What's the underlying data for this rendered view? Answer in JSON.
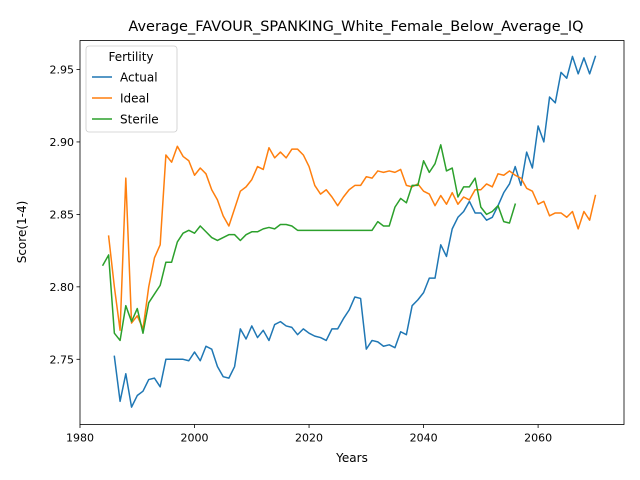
{
  "chart_data": {
    "type": "line",
    "title": "Average_FAVOUR_SPANKING_White_Female_Below_Average_IQ",
    "xlabel": "Years",
    "ylabel": "Score(1-4)",
    "xlim": [
      1980,
      2075
    ],
    "ylim": [
      2.705,
      2.97
    ],
    "xticks": [
      1980,
      2000,
      2020,
      2040,
      2060
    ],
    "yticks": [
      2.75,
      2.8,
      2.85,
      2.9,
      2.95
    ],
    "ytick_labels": [
      "2.75",
      "2.80",
      "2.85",
      "2.90",
      "2.95"
    ],
    "grid": false,
    "legend": {
      "title": "Fertility",
      "placement": "top-left"
    },
    "series": [
      {
        "name": "Actual",
        "color": "#1f77b4",
        "x": [
          1986,
          1987,
          1988,
          1989,
          1990,
          1991,
          1992,
          1993,
          1994,
          1995,
          1996,
          1997,
          1998,
          1999,
          2000,
          2001,
          2002,
          2003,
          2004,
          2005,
          2006,
          2007,
          2008,
          2009,
          2010,
          2011,
          2012,
          2013,
          2014,
          2015,
          2016,
          2017,
          2018,
          2019,
          2020,
          2021,
          2022,
          2023,
          2024,
          2025,
          2026,
          2027,
          2028,
          2029,
          2030,
          2031,
          2032,
          2033,
          2034,
          2035,
          2036,
          2037,
          2038,
          2039,
          2040,
          2041,
          2042,
          2043,
          2044,
          2045,
          2046,
          2047,
          2048,
          2049,
          2050,
          2051,
          2052,
          2053,
          2054,
          2055,
          2056,
          2057,
          2058,
          2059,
          2060,
          2061,
          2062,
          2063,
          2064,
          2065,
          2066,
          2067,
          2068,
          2069,
          2070
        ],
        "y": [
          2.752,
          2.721,
          2.74,
          2.717,
          2.725,
          2.728,
          2.736,
          2.737,
          2.731,
          2.75,
          2.75,
          2.75,
          2.75,
          2.749,
          2.755,
          2.749,
          2.759,
          2.757,
          2.745,
          2.738,
          2.737,
          2.745,
          2.771,
          2.764,
          2.773,
          2.765,
          2.77,
          2.763,
          2.774,
          2.776,
          2.773,
          2.772,
          2.767,
          2.771,
          2.768,
          2.766,
          2.765,
          2.763,
          2.771,
          2.771,
          2.778,
          2.784,
          2.793,
          2.792,
          2.757,
          2.763,
          2.762,
          2.759,
          2.76,
          2.758,
          2.769,
          2.767,
          2.787,
          2.791,
          2.796,
          2.806,
          2.806,
          2.829,
          2.821,
          2.84,
          2.848,
          2.852,
          2.859,
          2.851,
          2.851,
          2.846,
          2.848,
          2.856,
          2.865,
          2.871,
          2.883,
          2.87,
          2.893,
          2.882,
          2.911,
          2.9,
          2.931,
          2.927,
          2.948,
          2.944,
          2.959,
          2.947,
          2.958,
          2.947,
          2.959
        ]
      },
      {
        "name": "Ideal",
        "color": "#ff7f0e",
        "x": [
          1985,
          1986,
          1987,
          1988,
          1989,
          1990,
          1991,
          1992,
          1993,
          1994,
          1995,
          1996,
          1997,
          1998,
          1999,
          2000,
          2001,
          2002,
          2003,
          2004,
          2005,
          2006,
          2007,
          2008,
          2009,
          2010,
          2011,
          2012,
          2013,
          2014,
          2015,
          2016,
          2017,
          2018,
          2019,
          2020,
          2021,
          2022,
          2023,
          2024,
          2025,
          2026,
          2027,
          2028,
          2029,
          2030,
          2031,
          2032,
          2033,
          2034,
          2035,
          2036,
          2037,
          2038,
          2039,
          2040,
          2041,
          2042,
          2043,
          2044,
          2045,
          2046,
          2047,
          2048,
          2049,
          2050,
          2051,
          2052,
          2053,
          2054,
          2055,
          2056,
          2057,
          2058,
          2059,
          2060,
          2061,
          2062,
          2063,
          2064,
          2065,
          2066,
          2067,
          2068,
          2069,
          2070
        ],
        "y": [
          2.835,
          2.8,
          2.77,
          2.875,
          2.775,
          2.78,
          2.771,
          2.8,
          2.82,
          2.829,
          2.891,
          2.886,
          2.897,
          2.89,
          2.887,
          2.877,
          2.882,
          2.878,
          2.867,
          2.86,
          2.849,
          2.842,
          2.854,
          2.866,
          2.869,
          2.874,
          2.883,
          2.881,
          2.896,
          2.889,
          2.893,
          2.889,
          2.895,
          2.895,
          2.891,
          2.883,
          2.87,
          2.864,
          2.867,
          2.862,
          2.856,
          2.862,
          2.867,
          2.87,
          2.87,
          2.876,
          2.875,
          2.88,
          2.879,
          2.88,
          2.879,
          2.881,
          2.87,
          2.869,
          2.871,
          2.866,
          2.864,
          2.856,
          2.863,
          2.857,
          2.865,
          2.857,
          2.862,
          2.86,
          2.867,
          2.867,
          2.871,
          2.869,
          2.878,
          2.877,
          2.88,
          2.877,
          2.875,
          2.868,
          2.866,
          2.857,
          2.859,
          2.849,
          2.851,
          2.851,
          2.848,
          2.852,
          2.84,
          2.852,
          2.846,
          2.863
        ]
      },
      {
        "name": "Sterile",
        "color": "#2ca02c",
        "x": [
          1984,
          1985,
          1986,
          1987,
          1988,
          1989,
          1990,
          1991,
          1992,
          1993,
          1994,
          1995,
          1996,
          1997,
          1998,
          1999,
          2000,
          2001,
          2002,
          2003,
          2004,
          2005,
          2006,
          2007,
          2008,
          2009,
          2010,
          2011,
          2012,
          2013,
          2014,
          2015,
          2016,
          2017,
          2018,
          2019,
          2020,
          2021,
          2022,
          2023,
          2024,
          2025,
          2026,
          2027,
          2028,
          2029,
          2030,
          2031,
          2032,
          2033,
          2034,
          2035,
          2036,
          2037,
          2038,
          2039,
          2040,
          2041,
          2042,
          2043,
          2044,
          2045,
          2046,
          2047,
          2048,
          2049,
          2050,
          2051,
          2052,
          2053,
          2054,
          2055,
          2056
        ],
        "y": [
          2.815,
          2.822,
          2.768,
          2.763,
          2.787,
          2.776,
          2.785,
          2.768,
          2.789,
          2.795,
          2.801,
          2.817,
          2.817,
          2.831,
          2.837,
          2.839,
          2.837,
          2.842,
          2.838,
          2.834,
          2.832,
          2.834,
          2.836,
          2.836,
          2.832,
          2.836,
          2.838,
          2.838,
          2.84,
          2.841,
          2.84,
          2.843,
          2.843,
          2.842,
          2.839,
          2.839,
          2.839,
          2.839,
          2.839,
          2.839,
          2.839,
          2.839,
          2.839,
          2.839,
          2.839,
          2.839,
          2.839,
          2.839,
          2.845,
          2.842,
          2.842,
          2.855,
          2.861,
          2.858,
          2.87,
          2.87,
          2.887,
          2.879,
          2.885,
          2.898,
          2.88,
          2.882,
          2.862,
          2.869,
          2.869,
          2.875,
          2.855,
          2.85,
          2.852,
          2.856,
          2.845,
          2.844,
          2.857
        ]
      }
    ]
  }
}
